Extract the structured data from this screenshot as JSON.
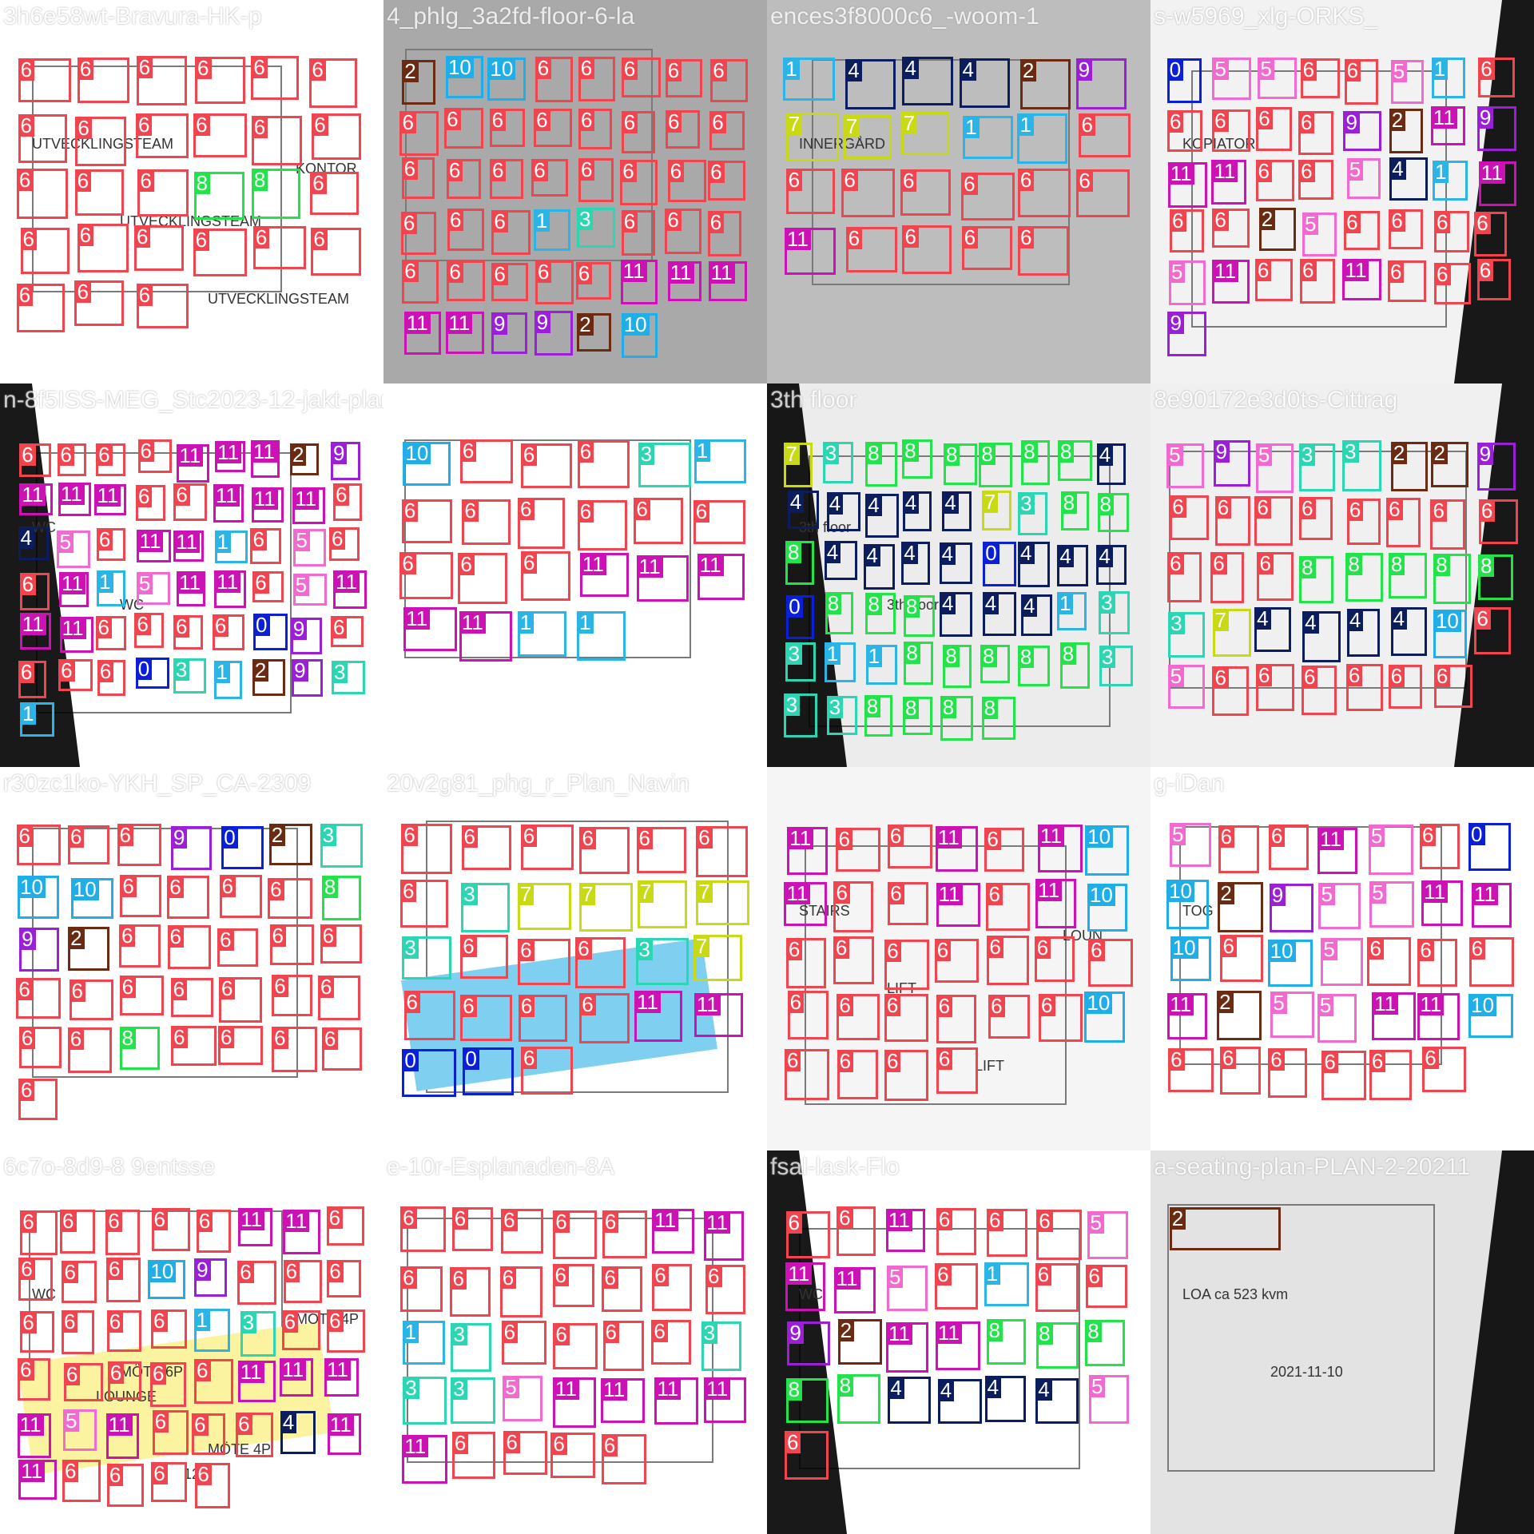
{
  "mosaic": {
    "colors": {
      "0": "#0a1fd6",
      "1": "#2bb5e6",
      "2": "#6b2a12",
      "3": "#2cd6b3",
      "4": "#0c1d5e",
      "5": "#f26ad0",
      "6": "#f0454f",
      "7": "#c8d916",
      "8": "#22e34a",
      "9": "#9a1fd6",
      "10": "#1faee8",
      "11": "#cc12b4"
    },
    "tiles": [
      {
        "title": "3h6e58wt-Bravura-HK-p",
        "bg": "#ffffff",
        "texts": [
          "UTVECKLINGSTEAM",
          "UTVECKLINGSTEAM",
          "UTVECKLINGSTEAM",
          "KONTOR"
        ],
        "labels": [
          6,
          6,
          6,
          6,
          6,
          6,
          6,
          6,
          6,
          6,
          6,
          6,
          6,
          6,
          6,
          8,
          8,
          6,
          6,
          6,
          6,
          6,
          6,
          6,
          6,
          6,
          6
        ]
      },
      {
        "title": "4_phlg_3a2fd-floor-6-la",
        "bg": "#a9a9a9",
        "texts": [],
        "labels": [
          2,
          10,
          10,
          6,
          6,
          6,
          6,
          6,
          6,
          6,
          6,
          6,
          6,
          6,
          6,
          6,
          6,
          6,
          6,
          6,
          6,
          6,
          6,
          6,
          6,
          6,
          6,
          1,
          3,
          6,
          6,
          6,
          6,
          6,
          6,
          6,
          6,
          11,
          11,
          11,
          11,
          11,
          9,
          9,
          2,
          10
        ]
      },
      {
        "title": "ences3f8000c6_-woom-1",
        "bg": "#bdbdbd",
        "texts": [
          "INNERGÅRD"
        ],
        "labels": [
          1,
          4,
          4,
          4,
          2,
          9,
          7,
          7,
          7,
          1,
          1,
          6,
          6,
          6,
          6,
          6,
          6,
          6,
          11,
          6,
          6,
          6,
          6
        ]
      },
      {
        "title": "s-w5969_xlg-ORKS_",
        "bg": "#f2f2f2",
        "texts": [
          "KOPIATOR"
        ],
        "labels": [
          0,
          5,
          5,
          6,
          6,
          5,
          1,
          6,
          6,
          6,
          6,
          6,
          9,
          2,
          11,
          9,
          11,
          11,
          6,
          6,
          5,
          4,
          1,
          11,
          6,
          6,
          2,
          5,
          6,
          6,
          6,
          6,
          5,
          11,
          6,
          6,
          11,
          6,
          6,
          6,
          9
        ]
      },
      {
        "title": "n-8f5ISS-MEG_Stc2023-12-jakt-plan",
        "bg": "#ffffff",
        "texts": [
          "WC",
          "WC"
        ],
        "labels": [
          6,
          6,
          6,
          6,
          11,
          11,
          11,
          2,
          9,
          11,
          11,
          11,
          6,
          6,
          11,
          11,
          11,
          6,
          4,
          5,
          6,
          11,
          11,
          1,
          6,
          5,
          6,
          6,
          11,
          1,
          5,
          11,
          11,
          6,
          5,
          11,
          11,
          11,
          6,
          6,
          6,
          6,
          0,
          9,
          6,
          6,
          6,
          6,
          0,
          3,
          1,
          2,
          9,
          3,
          1
        ]
      },
      {
        "title": "",
        "bg": "#ffffff",
        "texts": [],
        "labels": [
          10,
          6,
          6,
          6,
          3,
          1,
          6,
          6,
          6,
          6,
          6,
          6,
          6,
          6,
          6,
          11,
          11,
          11,
          11,
          11,
          1,
          1
        ]
      },
      {
        "title": "3th floor",
        "bg": "#ececec",
        "texts": [
          "3th floor",
          "3th floor"
        ],
        "labels": [
          7,
          3,
          8,
          8,
          8,
          8,
          8,
          8,
          4,
          4,
          4,
          4,
          4,
          4,
          7,
          3,
          8,
          8,
          8,
          4,
          4,
          4,
          4,
          0,
          4,
          4,
          4,
          0,
          8,
          8,
          8,
          4,
          4,
          4,
          1,
          3,
          3,
          1,
          1,
          8,
          8,
          8,
          8,
          8,
          3,
          3,
          3,
          8,
          8,
          8,
          8
        ]
      },
      {
        "title": "8e90172e3d0ts-Cittrag",
        "bg": "#f0f0f0",
        "texts": [],
        "labels": [
          5,
          9,
          5,
          3,
          3,
          2,
          2,
          9,
          6,
          6,
          6,
          6,
          6,
          6,
          6,
          6,
          6,
          6,
          6,
          8,
          8,
          8,
          8,
          8,
          3,
          7,
          4,
          4,
          4,
          4,
          10,
          6,
          5,
          6,
          6,
          6,
          6,
          6,
          6
        ]
      },
      {
        "title": "r30zc1ko-YKH_SP_CA-2309",
        "bg": "#ffffff",
        "texts": [],
        "labels": [
          6,
          6,
          6,
          9,
          0,
          2,
          3,
          10,
          10,
          6,
          6,
          6,
          6,
          8,
          9,
          2,
          6,
          6,
          6,
          6,
          6,
          6,
          6,
          6,
          6,
          6,
          6,
          6,
          6,
          6,
          8,
          6,
          6,
          6,
          6,
          6
        ]
      },
      {
        "title": "20v2g81_phg_r_Plan_Navin",
        "bg": "#ffffff",
        "texts": [],
        "labels": [
          6,
          6,
          6,
          6,
          6,
          6,
          6,
          3,
          7,
          7,
          7,
          7,
          3,
          6,
          6,
          6,
          3,
          7,
          6,
          6,
          6,
          6,
          11,
          11,
          0,
          0,
          6
        ]
      },
      {
        "title": "",
        "bg": "#f5f5f5",
        "texts": [
          "STAIRS",
          "LIFT",
          "LIFT",
          "LOUN"
        ],
        "labels": [
          11,
          6,
          6,
          11,
          6,
          11,
          10,
          11,
          6,
          6,
          11,
          6,
          11,
          10,
          6,
          6,
          6,
          6,
          6,
          6,
          6,
          6,
          6,
          6,
          6,
          6,
          6,
          10,
          6,
          6,
          6,
          6
        ]
      },
      {
        "title": "g-iDan",
        "bg": "#ffffff",
        "texts": [
          "TOG"
        ],
        "labels": [
          5,
          6,
          6,
          11,
          5,
          6,
          0,
          10,
          2,
          9,
          5,
          5,
          11,
          11,
          10,
          6,
          10,
          5,
          6,
          6,
          6,
          11,
          2,
          5,
          5,
          11,
          11,
          10,
          6,
          6,
          6,
          6,
          6,
          6
        ]
      },
      {
        "title": "6c7o-8d9-8 9entsse",
        "bg": "#ffffff",
        "texts": [
          "WC",
          "MÖTE 6P",
          "MÖTE 4P",
          "MÖTE 4P",
          "LOUNGE",
          "12P"
        ],
        "labels": [
          6,
          6,
          6,
          6,
          6,
          11,
          11,
          6,
          6,
          6,
          6,
          10,
          9,
          6,
          6,
          6,
          6,
          6,
          6,
          6,
          1,
          3,
          6,
          6,
          6,
          6,
          6,
          6,
          6,
          11,
          11,
          11,
          11,
          5,
          11,
          6,
          6,
          6,
          4,
          11,
          11,
          6,
          6,
          6,
          6
        ]
      },
      {
        "title": "e-10r-Esplanaden-8A",
        "bg": "#ffffff",
        "texts": [],
        "labels": [
          6,
          6,
          6,
          6,
          6,
          11,
          11,
          6,
          6,
          6,
          6,
          6,
          6,
          6,
          1,
          3,
          6,
          6,
          6,
          6,
          3,
          3,
          3,
          5,
          11,
          11,
          11,
          11,
          11,
          6,
          6,
          6,
          6
        ]
      },
      {
        "title": "fsal-lask-Flo",
        "bg": "#ffffff",
        "texts": [
          "WC"
        ],
        "labels": [
          6,
          6,
          11,
          6,
          6,
          6,
          5,
          11,
          11,
          5,
          6,
          1,
          6,
          6,
          9,
          2,
          11,
          11,
          8,
          8,
          8,
          8,
          8,
          4,
          4,
          4,
          4,
          5,
          6
        ]
      },
      {
        "title": "a-seating-plan-PLAN-2-20211",
        "bg": "#e3e3e3",
        "texts": [
          "LOA ca 523 kvm",
          "2021-11-10"
        ],
        "labels": [
          2
        ]
      }
    ]
  }
}
